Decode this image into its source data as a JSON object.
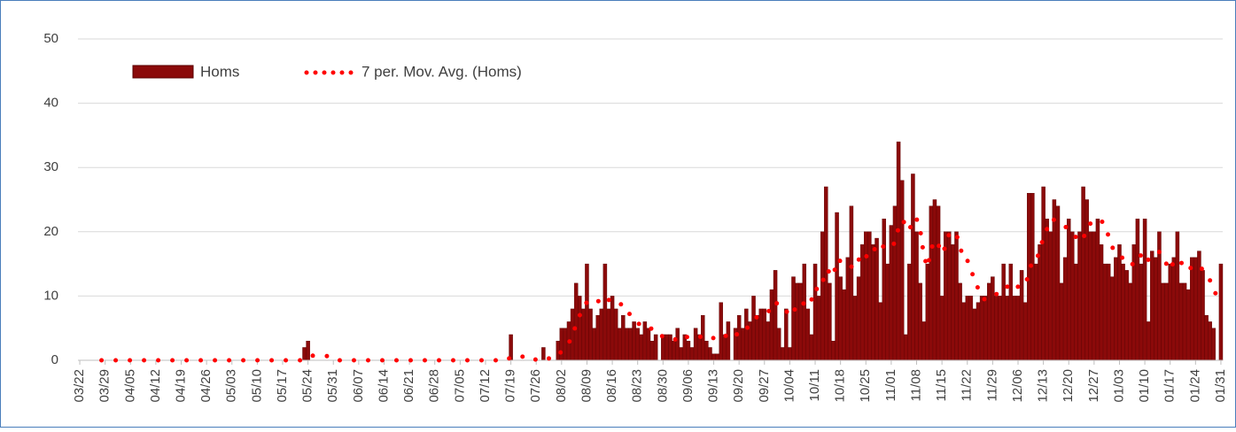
{
  "chart_data": {
    "type": "bar",
    "categories": [
      "03/22",
      null,
      null,
      null,
      null,
      null,
      null,
      "03/29",
      null,
      null,
      null,
      null,
      null,
      null,
      "04/05",
      null,
      null,
      null,
      null,
      null,
      null,
      "04/12",
      null,
      null,
      null,
      null,
      null,
      null,
      "04/19",
      null,
      null,
      null,
      null,
      null,
      null,
      "04/26",
      null,
      null,
      null,
      null,
      null,
      null,
      "05/03",
      null,
      null,
      null,
      null,
      null,
      null,
      "05/10",
      null,
      null,
      null,
      null,
      null,
      null,
      "05/17",
      null,
      null,
      null,
      null,
      null,
      null,
      "05/24",
      null,
      null,
      null,
      null,
      null,
      null,
      "05/31",
      null,
      null,
      null,
      null,
      null,
      null,
      "06/07",
      null,
      null,
      null,
      null,
      null,
      null,
      "06/14",
      null,
      null,
      null,
      null,
      null,
      null,
      "06/21",
      null,
      null,
      null,
      null,
      null,
      null,
      "06/28",
      null,
      null,
      null,
      null,
      null,
      null,
      "07/05",
      null,
      null,
      null,
      null,
      null,
      null,
      "07/12",
      null,
      null,
      null,
      null,
      null,
      null,
      "07/19",
      null,
      null,
      null,
      null,
      null,
      null,
      "07/26",
      null,
      null,
      null,
      null,
      null,
      null,
      "08/02",
      null,
      null,
      null,
      null,
      null,
      null,
      "08/09",
      null,
      null,
      null,
      null,
      null,
      null,
      "08/16",
      null,
      null,
      null,
      null,
      null,
      null,
      "08/23",
      null,
      null,
      null,
      null,
      null,
      null,
      "08/30",
      null,
      null,
      null,
      null,
      null,
      null,
      "09/06",
      null,
      null,
      null,
      null,
      null,
      null,
      "09/13",
      null,
      null,
      null,
      null,
      null,
      null,
      "09/20",
      null,
      null,
      null,
      null,
      null,
      null,
      "09/27",
      null,
      null,
      null,
      null,
      null,
      null,
      "10/04",
      null,
      null,
      null,
      null,
      null,
      null,
      "10/11",
      null,
      null,
      null,
      null,
      null,
      null,
      "10/18",
      null,
      null,
      null,
      null,
      null,
      null,
      "10/25",
      null,
      null,
      null,
      null,
      null,
      null,
      "11/01",
      null,
      null,
      null,
      null,
      null,
      null,
      "11/08",
      null,
      null,
      null,
      null,
      null,
      null,
      "11/15",
      null,
      null,
      null,
      null,
      null,
      null,
      "11/22",
      null,
      null,
      null,
      null,
      null,
      null,
      "11/29",
      null,
      null,
      null,
      null,
      null,
      null,
      "12/06",
      null,
      null,
      null,
      null,
      null,
      null,
      "12/13",
      null,
      null,
      null,
      null,
      null,
      null,
      "12/20",
      null,
      null,
      null,
      null,
      null,
      null,
      "12/27",
      null,
      null,
      null,
      null,
      null,
      null,
      "01/03",
      null,
      null,
      null,
      null,
      null,
      null,
      "01/10",
      null,
      null,
      null,
      null,
      null,
      null,
      "01/17",
      null,
      null,
      null,
      null,
      null,
      null,
      "01/24",
      null,
      null,
      null,
      null,
      null,
      null,
      "01/31"
    ],
    "series": [
      {
        "name": "Homs",
        "color": "#8b0a0a",
        "values": [
          0,
          0,
          0,
          0,
          0,
          0,
          0,
          0,
          0,
          0,
          0,
          0,
          0,
          0,
          0,
          0,
          0,
          0,
          0,
          0,
          0,
          0,
          0,
          0,
          0,
          0,
          0,
          0,
          0,
          0,
          0,
          0,
          0,
          0,
          0,
          0,
          0,
          0,
          0,
          0,
          0,
          0,
          0,
          0,
          0,
          0,
          0,
          0,
          0,
          0,
          0,
          0,
          0,
          0,
          0,
          0,
          0,
          0,
          0,
          0,
          0,
          0,
          2,
          3,
          0,
          0,
          0,
          0,
          0,
          0,
          0,
          0,
          0,
          0,
          0,
          0,
          0,
          0,
          0,
          0,
          0,
          0,
          0,
          0,
          0,
          0,
          0,
          0,
          0,
          0,
          0,
          0,
          0,
          0,
          0,
          0,
          0,
          0,
          0,
          0,
          0,
          0,
          0,
          0,
          0,
          0,
          0,
          0,
          0,
          0,
          0,
          0,
          0,
          0,
          0,
          0,
          0,
          0,
          0,
          4,
          0,
          0,
          0,
          0,
          0,
          0,
          0,
          0,
          2,
          0,
          0,
          0,
          3,
          5,
          5,
          6,
          8,
          12,
          10,
          8,
          15,
          8,
          5,
          7,
          8,
          15,
          8,
          10,
          8,
          5,
          7,
          5,
          5,
          6,
          5,
          4,
          6,
          5,
          3,
          4,
          0,
          4,
          4,
          4,
          3,
          5,
          2,
          4,
          3,
          2,
          5,
          4,
          7,
          3,
          2,
          1,
          1,
          9,
          4,
          6,
          0,
          5,
          7,
          5,
          8,
          6,
          10,
          7,
          8,
          8,
          6,
          11,
          14,
          5,
          2,
          8,
          2,
          13,
          12,
          12,
          15,
          8,
          4,
          15,
          10,
          20,
          27,
          12,
          3,
          23,
          13,
          11,
          16,
          24,
          10,
          13,
          18,
          20,
          20,
          18,
          19,
          9,
          22,
          15,
          21,
          24,
          34,
          28,
          4,
          15,
          29,
          20,
          12,
          6,
          15,
          24,
          25,
          24,
          10,
          20,
          20,
          18,
          20,
          12,
          9,
          10,
          10,
          8,
          9,
          10,
          10,
          12,
          13,
          10,
          10,
          15,
          10,
          15,
          10,
          10,
          14,
          9,
          26,
          26,
          15,
          18,
          27,
          22,
          20,
          25,
          24,
          12,
          16,
          22,
          20,
          15,
          20,
          27,
          25,
          20,
          20,
          22,
          18,
          15,
          15,
          13,
          16,
          18,
          15,
          14,
          12,
          18,
          22,
          15,
          22,
          6,
          17,
          16,
          20,
          12,
          12,
          15,
          16,
          20,
          12,
          12,
          11,
          16,
          16,
          17,
          14,
          7,
          6,
          5,
          0,
          15
        ]
      }
    ],
    "trendline": {
      "name": "7 per. Mov. Avg. (Homs)",
      "period": 7,
      "color": "#ff0000"
    },
    "ylim": [
      0,
      50
    ],
    "yticks": [
      0,
      10,
      20,
      30,
      40,
      50
    ],
    "grid": true,
    "legend": "top-left"
  }
}
